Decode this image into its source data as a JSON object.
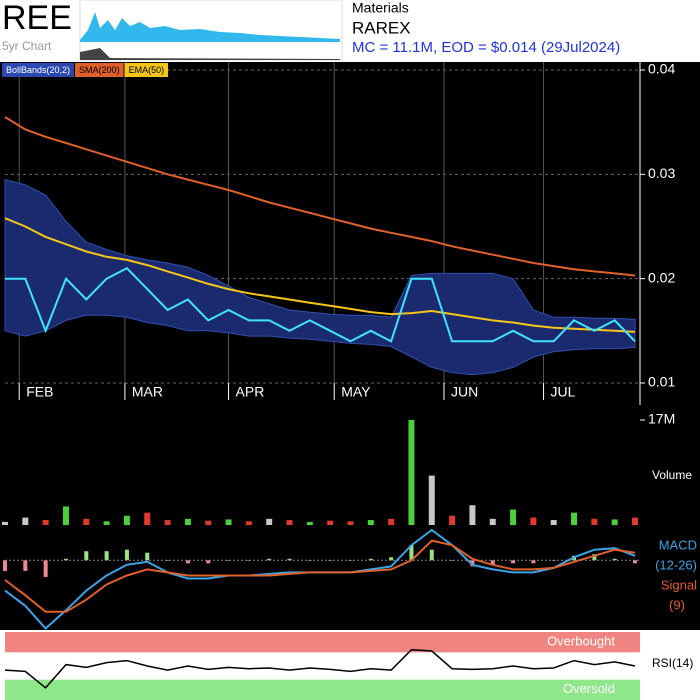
{
  "header": {
    "ticker": "REE",
    "thumb_label": "5yr Chart",
    "sector": "Materials",
    "name": "RAREX",
    "stats": "MC = 11.1M, EOD = $0.014 (29Jul2024)"
  },
  "chart_data": [
    {
      "type": "line",
      "xlim": [
        0,
        31
      ],
      "xticks": [
        {
          "value": 0.7,
          "label": "FEB"
        },
        {
          "value": 5.9,
          "label": "MAR"
        },
        {
          "value": 11,
          "label": "APR"
        },
        {
          "value": 16.2,
          "label": "MAY"
        },
        {
          "value": 21.6,
          "label": "JUN"
        },
        {
          "value": 26.5,
          "label": "JUL"
        }
      ],
      "ylim": [
        0.01,
        0.04
      ],
      "yticks": [
        0.01,
        0.02,
        0.03,
        0.04
      ],
      "grid": true,
      "bands": {
        "name": "BollBands(20,2)",
        "color": "#1b2a6e",
        "upper": [
          0.0295,
          0.029,
          0.028,
          0.0255,
          0.0235,
          0.0228,
          0.0222,
          0.0218,
          0.0215,
          0.0211,
          0.0203,
          0.0193,
          0.0182,
          0.0176,
          0.017,
          0.0168,
          0.0166,
          0.0165,
          0.0165,
          0.0163,
          0.0203,
          0.0205,
          0.0205,
          0.0205,
          0.0205,
          0.02,
          0.017,
          0.0163,
          0.0163,
          0.0162,
          0.0162,
          0.0161
        ],
        "lower": [
          0.015,
          0.0145,
          0.015,
          0.016,
          0.0165,
          0.0165,
          0.0163,
          0.0158,
          0.0155,
          0.015,
          0.015,
          0.0148,
          0.0145,
          0.0145,
          0.0143,
          0.0142,
          0.014,
          0.0138,
          0.0137,
          0.0135,
          0.0125,
          0.0115,
          0.011,
          0.0108,
          0.011,
          0.0115,
          0.0125,
          0.013,
          0.0132,
          0.0133,
          0.0133,
          0.0134
        ]
      },
      "series": [
        {
          "name": "SMA(200)",
          "color": "#e0602a",
          "values": [
            0.0355,
            0.0343,
            0.0336,
            0.033,
            0.0324,
            0.0318,
            0.0312,
            0.0306,
            0.03,
            0.0295,
            0.029,
            0.0285,
            0.0279,
            0.0273,
            0.0268,
            0.0263,
            0.0258,
            0.0253,
            0.0248,
            0.0244,
            0.024,
            0.0236,
            0.0231,
            0.0227,
            0.0223,
            0.0219,
            0.0215,
            0.0212,
            0.0209,
            0.0207,
            0.0205,
            0.0203
          ]
        },
        {
          "name": "EMA(50)",
          "color": "#f5c518",
          "values": [
            0.0258,
            0.025,
            0.024,
            0.0233,
            0.0226,
            0.0221,
            0.0218,
            0.0213,
            0.0207,
            0.0201,
            0.0195,
            0.019,
            0.0186,
            0.0183,
            0.018,
            0.0177,
            0.0174,
            0.0171,
            0.0168,
            0.0166,
            0.0167,
            0.0169,
            0.0166,
            0.0163,
            0.016,
            0.0158,
            0.0155,
            0.0153,
            0.0152,
            0.0151,
            0.015,
            0.0149
          ]
        },
        {
          "color": "#3fe3ff",
          "values": [
            0.02,
            0.02,
            0.015,
            0.02,
            0.018,
            0.02,
            0.021,
            0.019,
            0.017,
            0.018,
            0.016,
            0.017,
            0.016,
            0.016,
            0.015,
            0.016,
            0.015,
            0.014,
            0.015,
            0.014,
            0.02,
            0.02,
            0.014,
            0.014,
            0.014,
            0.015,
            0.014,
            0.014,
            0.016,
            0.015,
            0.016,
            0.014
          ]
        }
      ]
    },
    {
      "type": "bar",
      "ylabel": "Volume",
      "ylim": [
        0,
        17
      ],
      "yticks": [
        {
          "value": 17,
          "label": "17M"
        }
      ],
      "up_color": "#4ccf3c",
      "down_color": "#e03a2c",
      "flat_color": "#c8c8c8",
      "values": [
        0.5,
        1.2,
        0.8,
        3.0,
        1.0,
        0.6,
        1.5,
        2.0,
        0.8,
        1.0,
        0.7,
        0.9,
        0.6,
        1.0,
        0.8,
        0.5,
        0.7,
        0.6,
        0.8,
        1.0,
        17,
        8,
        1.5,
        3.2,
        1.0,
        2.5,
        1.2,
        0.8,
        2.0,
        1.0,
        0.9,
        1.2
      ]
    },
    {
      "type": "line",
      "ylim": [
        -0.0046,
        0.002
      ],
      "series": [
        {
          "name": "MACD",
          "params": "(12-26)",
          "color": "#3aa4e8",
          "values": [
            -0.002,
            -0.003,
            -0.0045,
            -0.0033,
            -0.002,
            -0.001,
            -0.0003,
            -0.0001,
            -0.0008,
            -0.0012,
            -0.0012,
            -0.001,
            -0.001,
            -0.0009,
            -0.0008,
            -0.0008,
            -0.0008,
            -0.0008,
            -0.0006,
            -0.0004,
            0.001,
            0.002,
            0.001,
            -0.0003,
            -0.0006,
            -0.0008,
            -0.0008,
            -0.0005,
            0.0002,
            0.0007,
            0.0008,
            0.0003
          ]
        },
        {
          "name": "Signal",
          "params": "(9)",
          "color": "#e0602a",
          "values": [
            -0.0013,
            -0.0023,
            -0.0034,
            -0.0034,
            -0.0026,
            -0.0016,
            -0.001,
            -0.0006,
            -0.0008,
            -0.001,
            -0.001,
            -0.001,
            -0.001,
            -0.001,
            -0.0009,
            -0.0008,
            -0.0008,
            -0.0008,
            -0.0007,
            -0.0006,
            0.0,
            0.0013,
            0.001,
            0.0001,
            -0.0003,
            -0.0006,
            -0.0006,
            -0.0005,
            -0.0001,
            0.0003,
            0.0007,
            0.0005
          ]
        }
      ]
    },
    {
      "type": "line",
      "ylabel": "RSI(14)",
      "ylim": [
        0,
        100
      ],
      "zones": [
        {
          "label": "Overbought",
          "from": 70,
          "to": 100,
          "color": "#f08480"
        },
        {
          "label": "Oversold",
          "from": 0,
          "to": 30,
          "color": "#8ee88a"
        }
      ],
      "series": [
        {
          "color": "#000000",
          "values": [
            44,
            42,
            18,
            52,
            48,
            55,
            58,
            50,
            44,
            50,
            45,
            48,
            46,
            47,
            44,
            47,
            45,
            42,
            46,
            44,
            74,
            72,
            46,
            45,
            46,
            50,
            46,
            47,
            58,
            52,
            56,
            50
          ]
        }
      ]
    }
  ]
}
